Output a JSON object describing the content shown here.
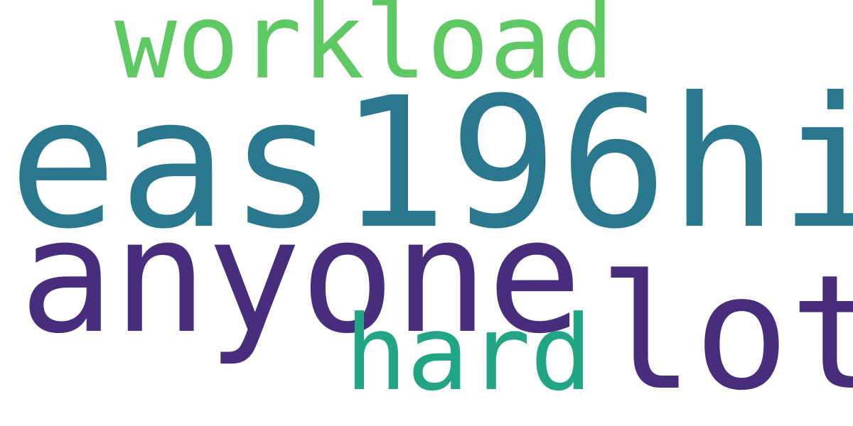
{
  "words": {
    "eas196hi": {
      "text": "eas196hi",
      "color": "#2a788e"
    },
    "workload": {
      "text": "workload",
      "color": "#5ec962"
    },
    "anyone": {
      "text": "anyone",
      "color": "#472d7b"
    },
    "lot": {
      "text": "lot",
      "color": "#472d7b"
    },
    "hard": {
      "text": "hard",
      "color": "#21a585"
    }
  }
}
